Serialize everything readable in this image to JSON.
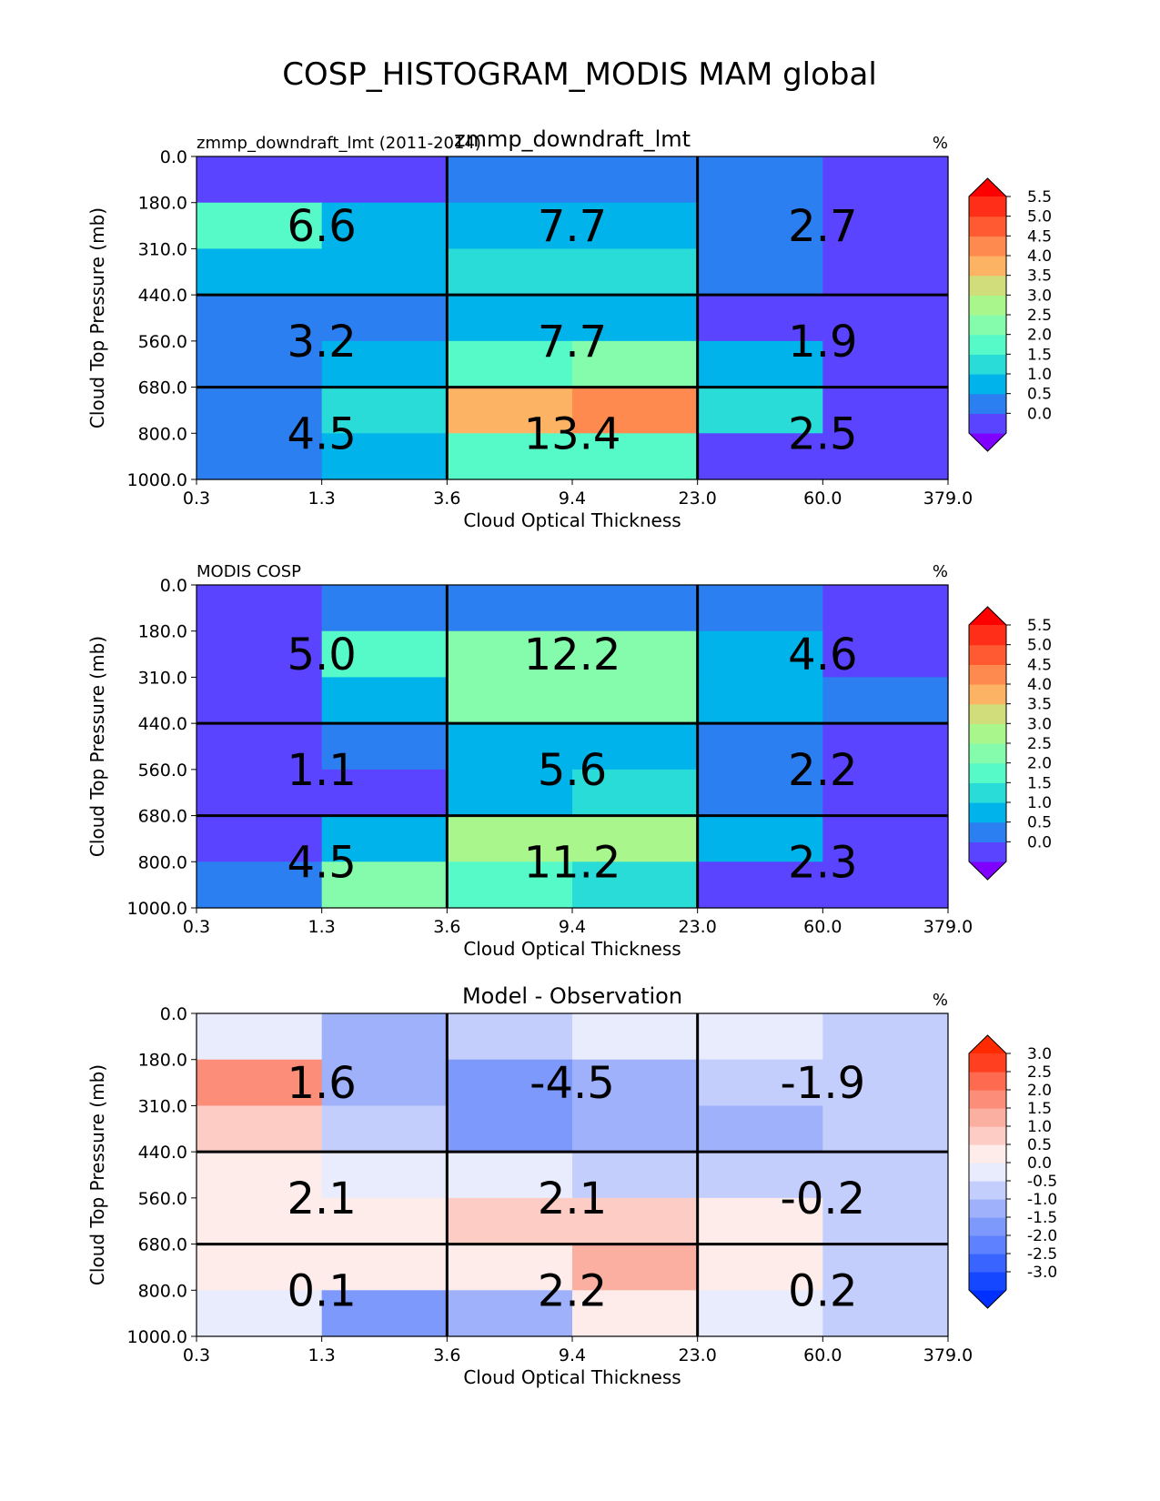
{
  "figure_title": "COSP_HISTOGRAM_MODIS MAM global",
  "chart_data": [
    {
      "type": "heatmap",
      "title": "zmmp_downdraft_lmt",
      "left_label": "zmmp_downdraft_lmt (2011-2014)",
      "units": "%",
      "xlabel": "Cloud Optical Thickness",
      "ylabel": "Cloud Top Pressure (mb)",
      "x_ticks": [
        "0.3",
        "1.3",
        "3.6",
        "9.4",
        "23.0",
        "60.0",
        "379.0"
      ],
      "y_ticks": [
        "0.0",
        "180.0",
        "310.0",
        "440.0",
        "560.0",
        "680.0",
        "800.0",
        "1000.0"
      ],
      "cells": [
        [
          0.2,
          0.2,
          0.8,
          0.8,
          0.8,
          0.2
        ],
        [
          2.2,
          1.4,
          1.3,
          1.3,
          0.8,
          0.2
        ],
        [
          1.4,
          1.4,
          1.8,
          1.8,
          0.8,
          0.2
        ],
        [
          0.8,
          0.8,
          1.4,
          1.4,
          0.2,
          0.2
        ],
        [
          0.8,
          1.4,
          2.2,
          2.8,
          1.4,
          0.2
        ],
        [
          0.8,
          1.8,
          4.2,
          4.9,
          1.8,
          0.2
        ],
        [
          0.8,
          1.4,
          2.2,
          2.2,
          0.2,
          0.2
        ]
      ],
      "box_labels": [
        [
          "6.6",
          "7.7",
          "2.7"
        ],
        [
          "3.2",
          "7.7",
          "1.9"
        ],
        [
          "4.5",
          "13.4",
          "2.5"
        ]
      ],
      "colorbar": {
        "ticks": [
          "0.0",
          "0.5",
          "1.0",
          "1.5",
          "2.0",
          "2.5",
          "3.0",
          "3.5",
          "4.0",
          "4.5",
          "5.0",
          "5.5"
        ],
        "levels": [
          0,
          0.5,
          1,
          1.5,
          2,
          2.5,
          3,
          3.5,
          4,
          4.5,
          5,
          5.5
        ],
        "colors": [
          "#5a44ff",
          "#2b7ff0",
          "#00b4eb",
          "#29dcd8",
          "#55fac8",
          "#84fcac",
          "#a9f78c",
          "#d1dd7a",
          "#fcb464",
          "#ff8a50",
          "#ff5a32",
          "#ff2e18"
        ],
        "under": "#7f00ff",
        "over": "#ff0000"
      }
    },
    {
      "type": "heatmap",
      "title": "",
      "left_label": "MODIS COSP",
      "units": "%",
      "xlabel": "Cloud Optical Thickness",
      "ylabel": "Cloud Top Pressure (mb)",
      "x_ticks": [
        "0.3",
        "1.3",
        "3.6",
        "9.4",
        "23.0",
        "60.0",
        "379.0"
      ],
      "y_ticks": [
        "0.0",
        "180.0",
        "310.0",
        "440.0",
        "560.0",
        "680.0",
        "800.0",
        "1000.0"
      ],
      "cells": [
        [
          0.2,
          0.8,
          0.8,
          0.8,
          0.8,
          0.2
        ],
        [
          0.2,
          2.2,
          2.6,
          2.6,
          1.4,
          0.2
        ],
        [
          0.2,
          1.4,
          2.6,
          2.6,
          1.4,
          0.8
        ],
        [
          0.2,
          0.8,
          1.4,
          1.4,
          0.8,
          0.2
        ],
        [
          0.2,
          0.2,
          1.4,
          1.8,
          0.8,
          0.2
        ],
        [
          0.2,
          1.4,
          3.2,
          3.2,
          1.4,
          0.2
        ],
        [
          0.8,
          2.6,
          2.4,
          1.8,
          0.2,
          0.2
        ]
      ],
      "box_labels": [
        [
          "5.0",
          "12.2",
          "4.6"
        ],
        [
          "1.1",
          "5.6",
          "2.2"
        ],
        [
          "4.5",
          "11.2",
          "2.3"
        ]
      ],
      "colorbar": {
        "ticks": [
          "0.0",
          "0.5",
          "1.0",
          "1.5",
          "2.0",
          "2.5",
          "3.0",
          "3.5",
          "4.0",
          "4.5",
          "5.0",
          "5.5"
        ],
        "levels": [
          0,
          0.5,
          1,
          1.5,
          2,
          2.5,
          3,
          3.5,
          4,
          4.5,
          5,
          5.5
        ],
        "colors": [
          "#5a44ff",
          "#2b7ff0",
          "#00b4eb",
          "#29dcd8",
          "#55fac8",
          "#84fcac",
          "#a9f78c",
          "#d1dd7a",
          "#fcb464",
          "#ff8a50",
          "#ff5a32",
          "#ff2e18"
        ],
        "under": "#7f00ff",
        "over": "#ff0000"
      }
    },
    {
      "type": "heatmap",
      "title": "Model - Observation",
      "left_label": "",
      "units": "%",
      "xlabel": "Cloud Optical Thickness",
      "ylabel": "Cloud Top Pressure (mb)",
      "x_ticks": [
        "0.3",
        "1.3",
        "3.6",
        "9.4",
        "23.0",
        "60.0",
        "379.0"
      ],
      "y_ticks": [
        "0.0",
        "180.0",
        "310.0",
        "440.0",
        "560.0",
        "680.0",
        "800.0",
        "1000.0"
      ],
      "cells": [
        [
          0.2,
          -0.7,
          -0.2,
          0.2,
          0.2,
          -0.2
        ],
        [
          2.2,
          -0.7,
          -1.2,
          -0.7,
          -0.2,
          -0.2
        ],
        [
          1.2,
          -0.2,
          -1.2,
          -0.7,
          -0.7,
          -0.2
        ],
        [
          0.7,
          0.2,
          0.2,
          -0.2,
          -0.2,
          -0.2
        ],
        [
          0.7,
          0.7,
          1.2,
          1.2,
          0.7,
          -0.2
        ],
        [
          0.7,
          0.7,
          0.7,
          1.7,
          0.7,
          -0.2
        ],
        [
          0.2,
          -1.2,
          -0.7,
          0.7,
          0.2,
          -0.2
        ]
      ],
      "box_labels": [
        [
          "1.6",
          "-4.5",
          "-1.9"
        ],
        [
          "2.1",
          "2.1",
          "-0.2"
        ],
        [
          "0.1",
          "2.2",
          "0.2"
        ]
      ],
      "colorbar": {
        "ticks": [
          "-3.0",
          "-2.5",
          "-2.0",
          "-1.5",
          "-1.0",
          "-0.5",
          "0.0",
          "0.5",
          "1.0",
          "1.5",
          "2.0",
          "2.5",
          "3.0"
        ],
        "levels": [
          -3,
          -2.5,
          -2,
          -1.5,
          -1,
          -0.5,
          0,
          0.5,
          1,
          1.5,
          2,
          2.5,
          3
        ],
        "colors": [
          "#1447ff",
          "#3a64ff",
          "#5e82ff",
          "#7d99fb",
          "#9eb1fa",
          "#c4cefd",
          "#e9ecfd",
          "#fdecea",
          "#fdccc5",
          "#fbafa0",
          "#fc8d78",
          "#fd6a4f",
          "#ff3f1f"
        ],
        "under": "#0030ff",
        "over": "#ff2a00"
      }
    }
  ]
}
